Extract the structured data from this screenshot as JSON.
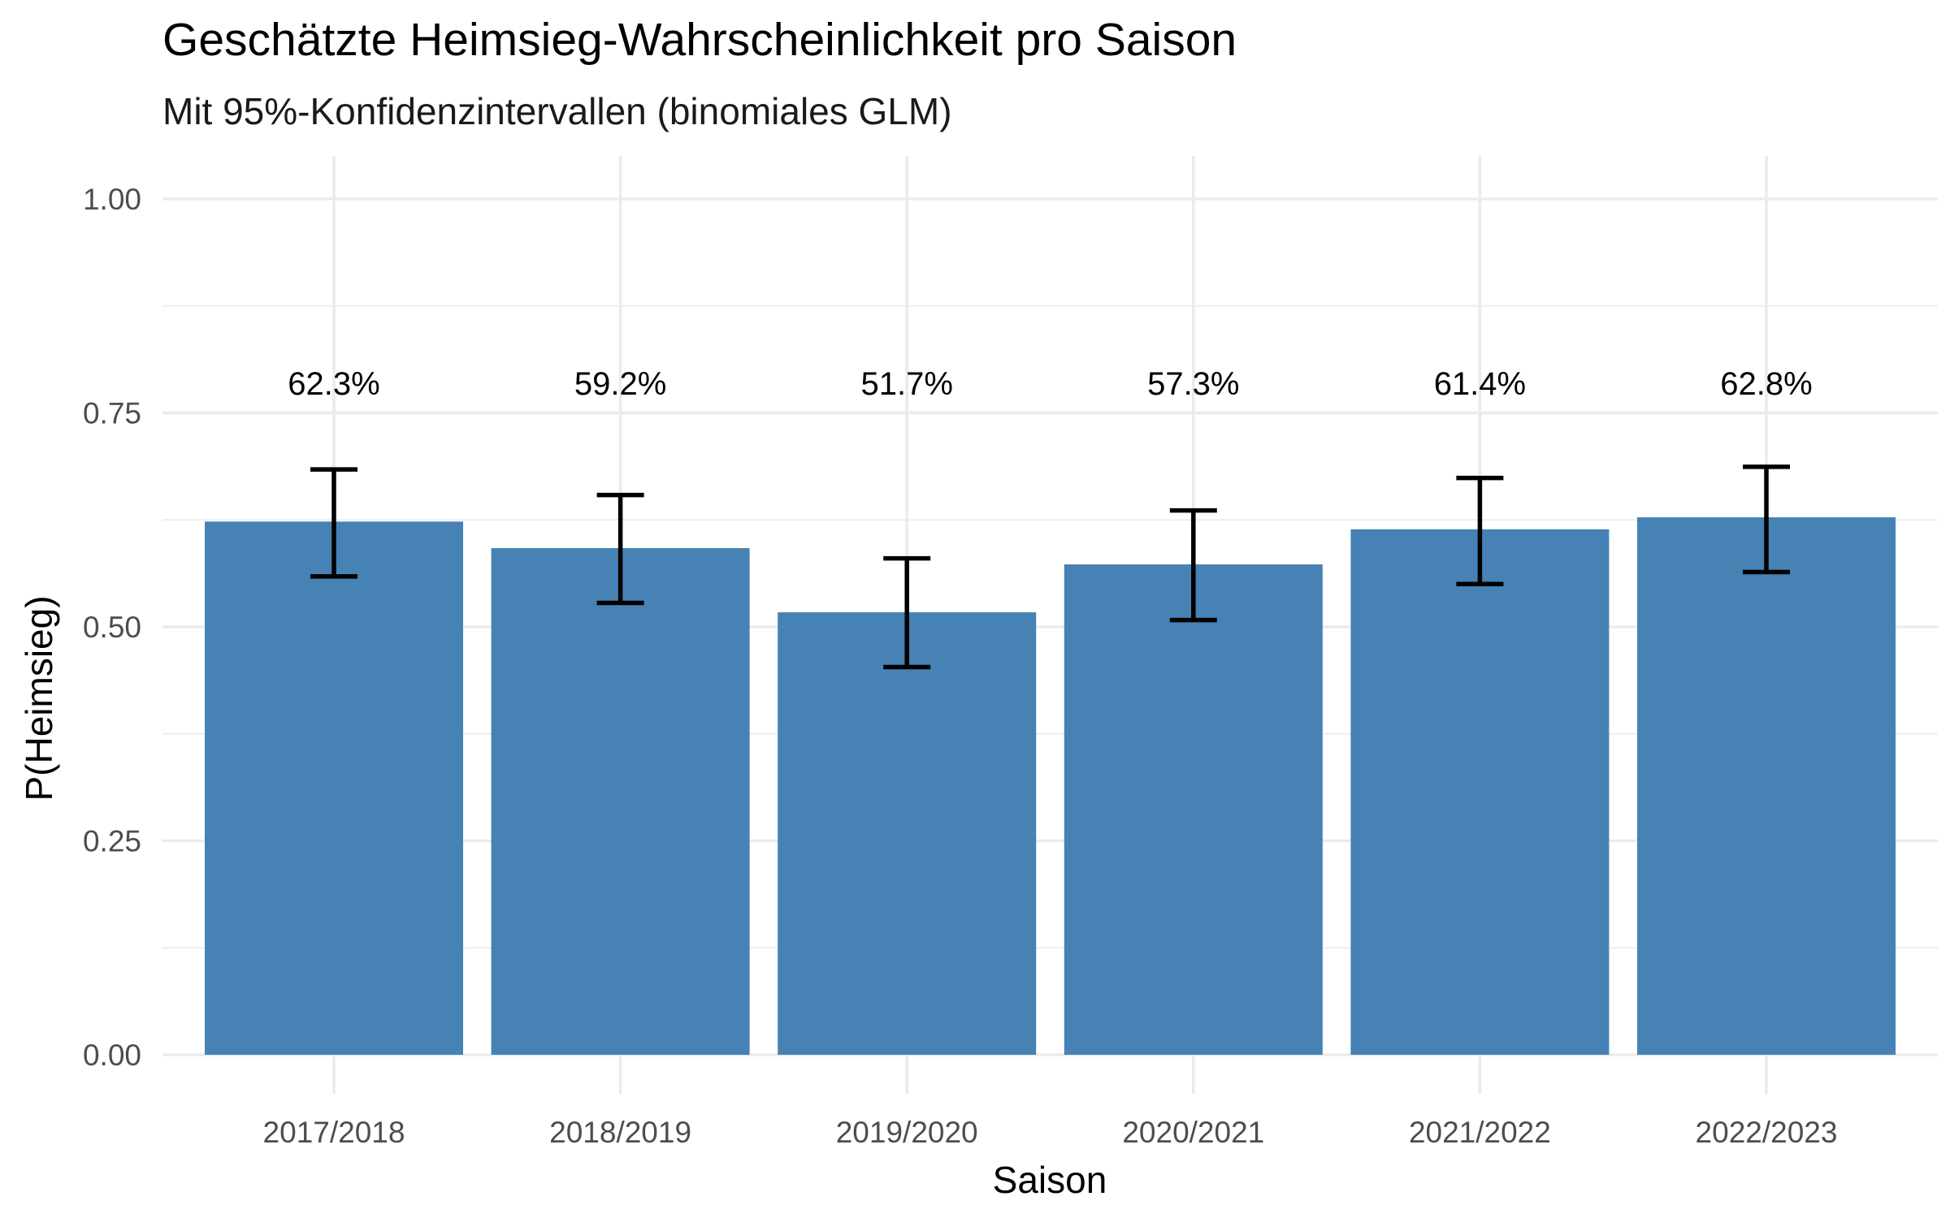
{
  "chart_data": {
    "type": "bar",
    "title": "Geschätzte Heimsieg-Wahrscheinlichkeit pro Saison",
    "subtitle": "Mit 95%-Konfidenzintervallen (binomiales GLM)",
    "xlabel": "Saison",
    "ylabel": "P(Heimsieg)",
    "ylim": [
      0,
      1
    ],
    "yticks": [
      0,
      0.25,
      0.5,
      0.75,
      1
    ],
    "ytick_labels": [
      "0.00",
      "0.25",
      "0.50",
      "0.75",
      "1.00"
    ],
    "categories": [
      "2017/2018",
      "2018/2019",
      "2019/2020",
      "2020/2021",
      "2021/2022",
      "2022/2023"
    ],
    "values": [
      0.623,
      0.592,
      0.517,
      0.573,
      0.614,
      0.628
    ],
    "ci_lower": [
      0.559,
      0.528,
      0.453,
      0.508,
      0.55,
      0.564
    ],
    "ci_upper": [
      0.684,
      0.654,
      0.58,
      0.636,
      0.674,
      0.687
    ],
    "data_labels": [
      "62.3%",
      "59.2%",
      "51.7%",
      "57.3%",
      "61.4%",
      "62.8%"
    ],
    "grid": true,
    "bar_color": "#4682B4",
    "errorbar_color": "#000000"
  }
}
